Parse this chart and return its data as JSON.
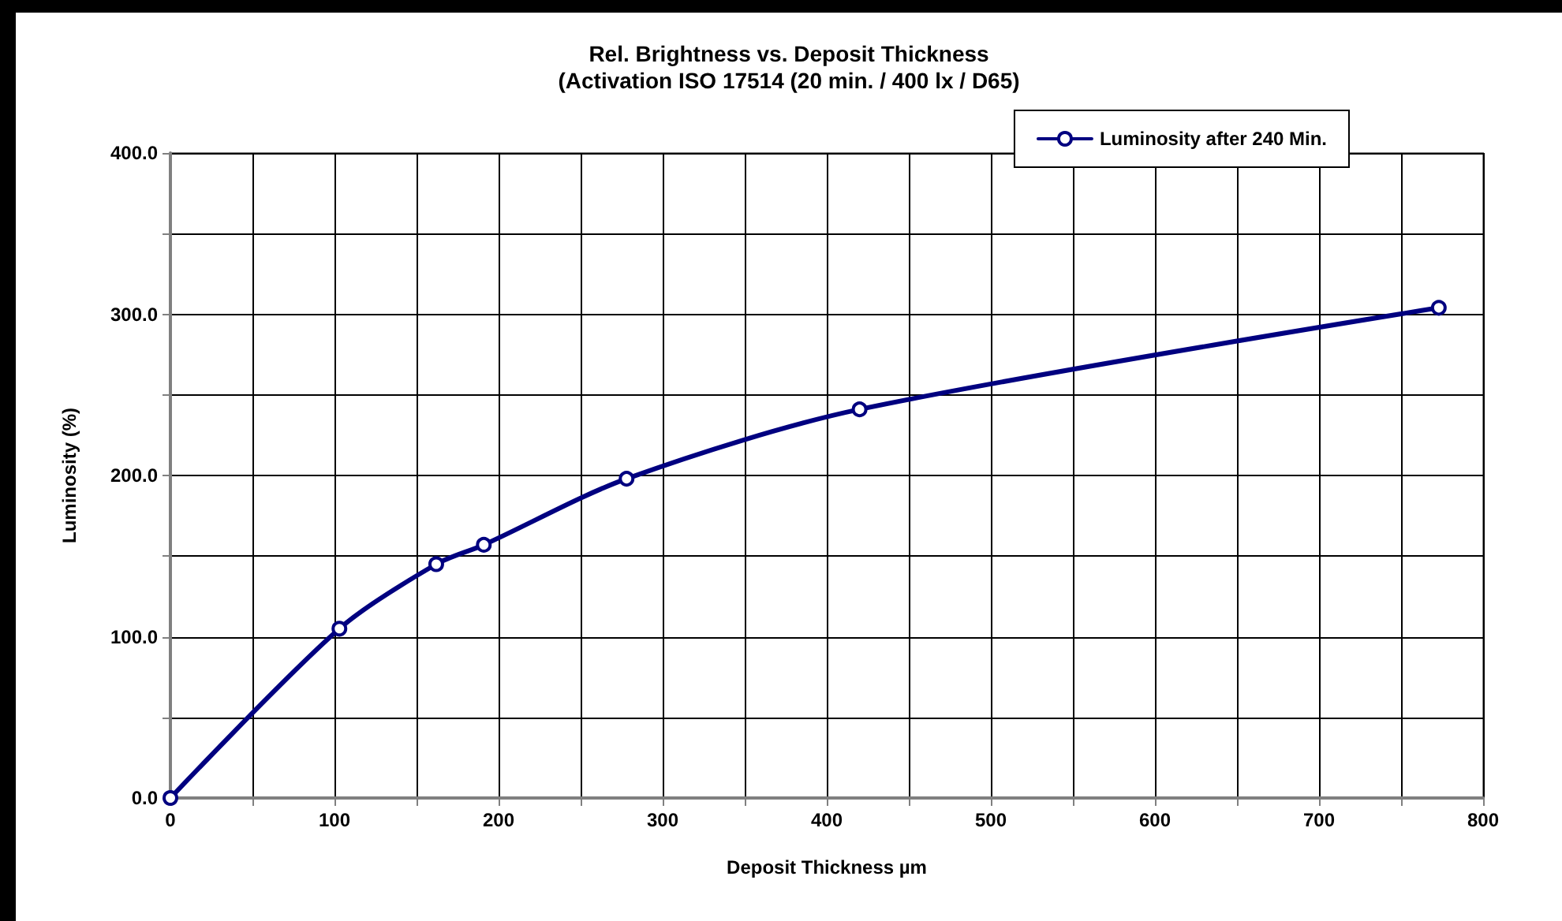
{
  "chart_data": {
    "type": "line",
    "title": "Rel. Brightness vs. Deposit Thickness",
    "subtitle": "(Activation ISO 17514 (20 min. / 400 lx / D65)",
    "xlabel": "Deposit Thickness µm",
    "ylabel": "Luminosity (%)",
    "x": [
      0,
      103,
      162,
      191,
      278,
      420,
      773
    ],
    "series": [
      {
        "name": "Luminosity after 240 Min.",
        "color": "#000080",
        "values": [
          0,
          105,
          145,
          157,
          198,
          241,
          304
        ]
      }
    ],
    "xlim": [
      0,
      800
    ],
    "ylim": [
      0,
      400
    ],
    "xticks": [
      0,
      {
        "value": 50,
        "label": null
      },
      100,
      {
        "value": 150,
        "label": null
      },
      200,
      {
        "value": 250,
        "label": null
      },
      300,
      {
        "value": 350,
        "label": null
      },
      400,
      {
        "value": 450,
        "label": null
      },
      500,
      {
        "value": 550,
        "label": null
      },
      600,
      {
        "value": 650,
        "label": null
      },
      700,
      {
        "value": 750,
        "label": null
      },
      800
    ],
    "yticks": [
      {
        "value": 0,
        "label": "0.0"
      },
      {
        "value": 50,
        "label": null
      },
      {
        "value": 100,
        "label": "100.0"
      },
      {
        "value": 150,
        "label": null
      },
      {
        "value": 200,
        "label": "200.0"
      },
      {
        "value": 250,
        "label": null
      },
      {
        "value": 300,
        "label": "300.0"
      },
      {
        "value": 350,
        "label": null
      },
      {
        "value": 400,
        "label": "400.0"
      }
    ],
    "grid": true,
    "legend": "top right",
    "marker": "circle",
    "line_style": "solid"
  }
}
